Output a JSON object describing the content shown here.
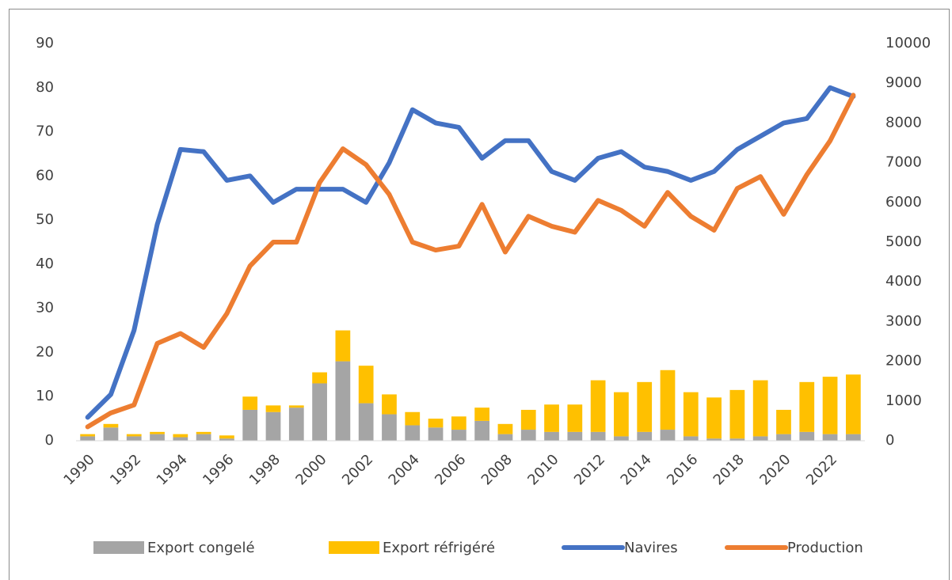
{
  "chart_data": {
    "type": "combo",
    "x": [
      1990,
      1991,
      1992,
      1993,
      1994,
      1995,
      1996,
      1997,
      1998,
      1999,
      2000,
      2001,
      2002,
      2003,
      2004,
      2005,
      2006,
      2007,
      2008,
      2009,
      2010,
      2011,
      2012,
      2013,
      2014,
      2015,
      2016,
      2017,
      2018,
      2019,
      2020,
      2021,
      2022,
      2023
    ],
    "xlim": [
      1989.5,
      2023.5
    ],
    "xticks": [
      1990,
      1992,
      1994,
      1996,
      1998,
      2000,
      2002,
      2004,
      2006,
      2008,
      2010,
      2012,
      2014,
      2016,
      2018,
      2020,
      2022
    ],
    "ylim": [
      0,
      90
    ],
    "yticks": [
      0,
      10,
      20,
      30,
      40,
      50,
      60,
      70,
      80,
      90
    ],
    "y2lim": [
      0,
      10000
    ],
    "y2ticks": [
      0,
      1000,
      2000,
      3000,
      4000,
      5000,
      6000,
      7000,
      8000,
      9000,
      10000
    ],
    "grid": false,
    "legend": "bottom",
    "series": [
      {
        "name": "Export congelé",
        "type": "bar",
        "color": "#a5a5a5",
        "values": [
          1,
          3,
          1,
          1.5,
          0.8,
          1.5,
          0.5,
          7,
          6.5,
          7.5,
          13,
          18,
          8.5,
          6,
          3.5,
          3,
          2.5,
          4.5,
          1.5,
          2.5,
          2,
          2,
          2,
          1,
          2,
          2.5,
          1,
          0.5,
          0.5,
          1,
          1.5,
          2,
          1.5,
          1.5
        ]
      },
      {
        "name": "Export réfrigéré",
        "type": "bar",
        "color": "#ffc000",
        "values": [
          0.5,
          0.8,
          0.5,
          0.5,
          0.7,
          0.5,
          0.7,
          3,
          1.5,
          0.5,
          2.5,
          7,
          8.5,
          4.5,
          3,
          2,
          3,
          3,
          2.3,
          4.5,
          6.2,
          6.2,
          11.7,
          10,
          11.3,
          13.5,
          10,
          9.3,
          11,
          12.7,
          5.5,
          11.3,
          13,
          13.5
        ]
      },
      {
        "name": "Navires",
        "type": "line",
        "color": "#4472c4",
        "values": [
          5.3,
          10.5,
          25,
          49,
          66,
          65.5,
          59,
          60,
          54,
          57,
          57,
          57,
          54,
          63,
          75,
          72,
          71,
          64,
          68,
          68,
          61,
          59,
          64,
          65.5,
          62,
          61,
          59,
          61,
          66,
          69,
          72,
          73,
          80,
          78
        ]
      },
      {
        "name": "Production",
        "type": "line",
        "color": "#ed7d31",
        "axis": "y2",
        "values": [
          350,
          700,
          900,
          2450,
          2700,
          2350,
          3200,
          4400,
          5000,
          5000,
          6500,
          7350,
          6950,
          6200,
          5000,
          4800,
          4900,
          5950,
          4750,
          5650,
          5400,
          5250,
          6050,
          5800,
          5400,
          6250,
          5650,
          5300,
          6350,
          6650,
          5700,
          6700,
          7550,
          8700
        ]
      }
    ]
  }
}
